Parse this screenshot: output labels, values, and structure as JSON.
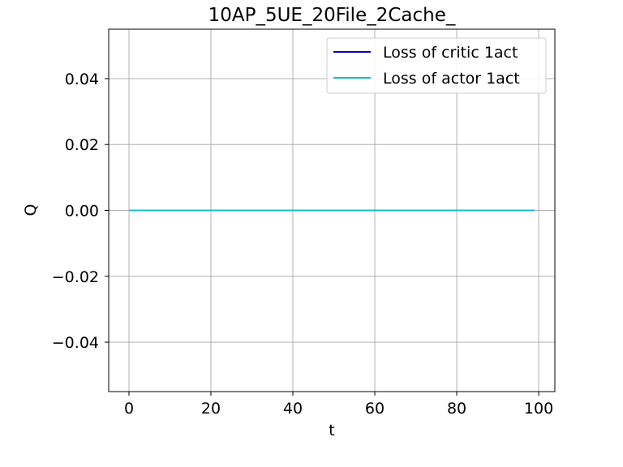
{
  "chart_data": {
    "type": "line",
    "title": "10AP_5UE_20File_2Cache_",
    "xlabel": "t",
    "ylabel": "Q",
    "xlim": [
      -4.95,
      103.95
    ],
    "ylim": [
      -0.055,
      0.055
    ],
    "x_ticks": [
      0,
      20,
      40,
      60,
      80,
      100
    ],
    "x_tick_labels": [
      "0",
      "20",
      "40",
      "60",
      "80",
      "100"
    ],
    "y_ticks": [
      -0.04,
      -0.02,
      0.0,
      0.02,
      0.04
    ],
    "y_tick_labels": [
      "−0.04",
      "−0.02",
      "0.00",
      "0.02",
      "0.04"
    ],
    "grid": true,
    "legend_position": "top-right",
    "series": [
      {
        "name": "Loss of critic 1act",
        "color": "#0000cc",
        "x_range": [
          0,
          99
        ],
        "y_constant": 0.0
      },
      {
        "name": "Loss of actor 1act",
        "color": "#17becf",
        "x_range": [
          0,
          99
        ],
        "y_constant": 0.0
      }
    ]
  }
}
